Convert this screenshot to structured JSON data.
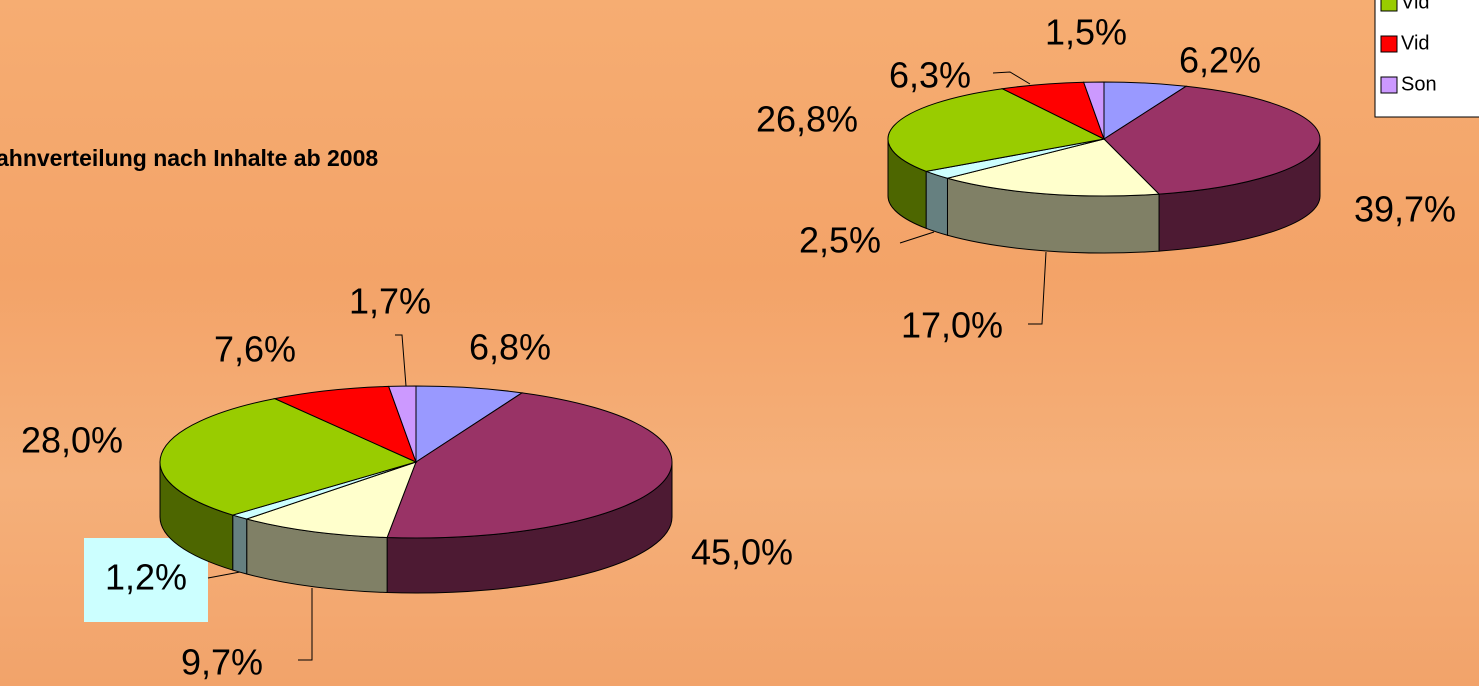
{
  "title": "ahnverteilung nach Inhalte ab 2008",
  "legend": {
    "items": [
      {
        "label": "Vid",
        "color": "#99cc00"
      },
      {
        "label": "Vid",
        "color": "#ff0000"
      },
      {
        "label": "Son",
        "color": "#cc99ff"
      }
    ]
  },
  "chart_data": [
    {
      "type": "pie3d",
      "categories": [
        null,
        null,
        null,
        null,
        null,
        null,
        null
      ],
      "values": [
        6.8,
        45.0,
        9.7,
        1.2,
        28.0,
        7.6,
        1.7
      ],
      "value_labels": [
        "6,8%",
        "45,0%",
        "9,7%",
        "1,2%",
        "28,0%",
        "7,6%",
        "1,7%"
      ],
      "colors": [
        "#9999ff",
        "#993366",
        "#ffffcc",
        "#ccffff",
        "#99cc00",
        "#ff0000",
        "#cc99ff"
      ]
    },
    {
      "type": "pie3d",
      "categories": [
        null,
        null,
        null,
        null,
        null,
        null,
        null
      ],
      "values": [
        6.2,
        39.7,
        17.0,
        2.5,
        26.8,
        6.3,
        1.5
      ],
      "value_labels": [
        "6,2%",
        "39,7%",
        "17,0%",
        "2,5%",
        "26,8%",
        "6,3%",
        "1,5%"
      ],
      "colors": [
        "#9999ff",
        "#993366",
        "#ffffcc",
        "#ccffff",
        "#99cc00",
        "#ff0000",
        "#cc99ff"
      ]
    }
  ]
}
